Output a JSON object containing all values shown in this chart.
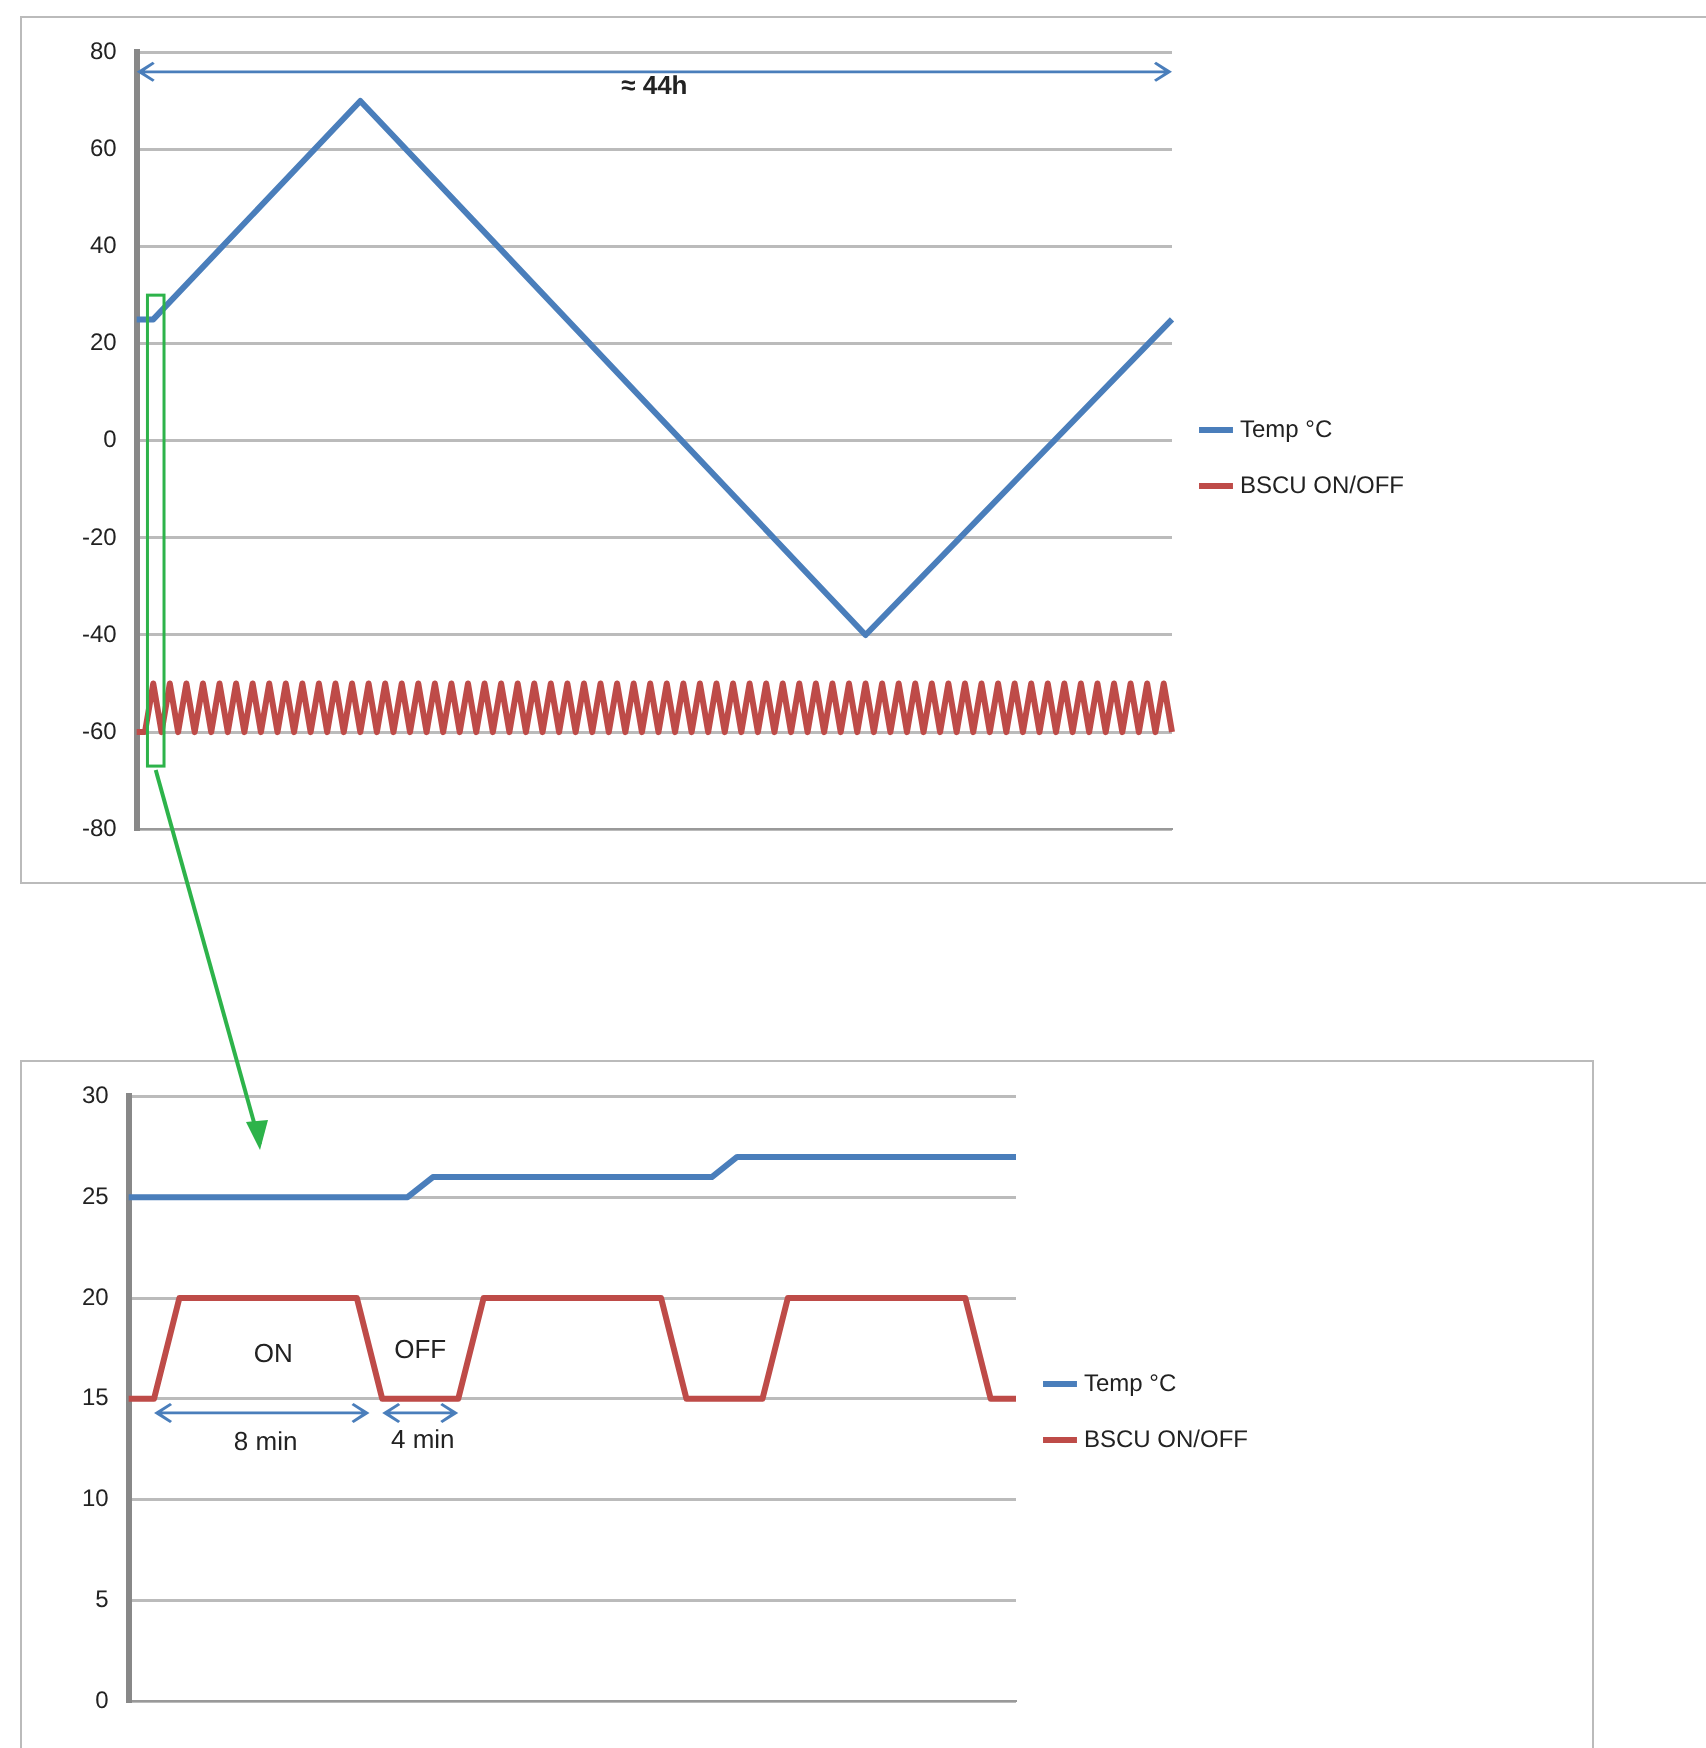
{
  "chart_data": [
    {
      "type": "line",
      "categories": [
        null,
        null,
        null,
        null,
        null,
        null,
        null,
        null,
        null,
        null,
        null,
        null,
        null,
        null,
        null,
        null,
        null,
        null,
        null,
        null,
        null,
        null,
        null,
        null,
        null,
        null,
        null,
        null,
        null,
        null,
        null,
        null,
        null,
        null,
        null,
        null,
        null,
        null,
        null,
        null,
        null,
        null,
        null,
        null,
        null,
        null,
        null,
        null,
        null,
        null,
        null,
        null,
        null,
        null,
        null,
        null,
        null,
        null,
        null,
        null,
        null,
        null,
        null,
        null,
        null,
        null,
        null,
        null,
        null,
        null,
        null,
        null,
        null,
        null,
        null,
        null,
        null,
        null,
        null,
        null,
        null,
        null,
        null,
        null,
        null,
        null,
        null,
        null,
        null,
        null,
        null,
        null,
        null,
        null,
        null,
        null,
        null,
        null,
        null,
        null,
        null,
        null,
        null,
        null,
        null,
        null,
        null,
        null,
        null,
        null,
        null,
        null,
        null,
        null,
        null,
        null,
        null,
        null,
        null,
        null,
        null,
        null,
        null,
        null,
        null,
        null
      ],
      "series": [
        {
          "name": "Temp °C",
          "color": "#4a7ebb",
          "values": [
            25,
            null,
            25,
            null,
            null,
            null,
            null,
            null,
            null,
            null,
            null,
            null,
            null,
            null,
            null,
            null,
            null,
            null,
            null,
            null,
            null,
            null,
            null,
            null,
            null,
            null,
            null,
            70,
            null,
            null,
            null,
            null,
            null,
            null,
            null,
            null,
            null,
            null,
            null,
            null,
            null,
            null,
            null,
            null,
            null,
            null,
            null,
            null,
            null,
            null,
            null,
            null,
            null,
            null,
            null,
            null,
            null,
            null,
            null,
            null,
            null,
            null,
            null,
            null,
            null,
            null,
            null,
            null,
            null,
            null,
            null,
            null,
            null,
            null,
            null,
            null,
            null,
            null,
            null,
            null,
            null,
            null,
            null,
            null,
            null,
            null,
            null,
            null,
            -40,
            null,
            null,
            null,
            null,
            null,
            null,
            null,
            null,
            null,
            null,
            null,
            null,
            null,
            null,
            null,
            null,
            null,
            null,
            null,
            null,
            null,
            null,
            null,
            null,
            null,
            null,
            null,
            null,
            null,
            null,
            null,
            null,
            null,
            null,
            null,
            null,
            25
          ]
        },
        {
          "name": "BSCU ON/OFF",
          "color": "#be4b48",
          "values": [
            -60,
            -60,
            -50,
            -60,
            -50,
            -60,
            -50,
            -60,
            -50,
            -60,
            -50,
            -60,
            -50,
            -60,
            -50,
            -60,
            -50,
            -60,
            -50,
            -60,
            -50,
            -60,
            -50,
            -60,
            -50,
            -60,
            -50,
            -60,
            -50,
            -60,
            -50,
            -60,
            -50,
            -60,
            -50,
            -60,
            -50,
            -60,
            -50,
            -60,
            -50,
            -60,
            -50,
            -60,
            -50,
            -60,
            -50,
            -60,
            -50,
            -60,
            -50,
            -60,
            -50,
            -60,
            -50,
            -60,
            -50,
            -60,
            -50,
            -60,
            -50,
            -60,
            -50,
            -60,
            -50,
            -60,
            -50,
            -60,
            -50,
            -60,
            -50,
            -60,
            -50,
            -60,
            -50,
            -60,
            -50,
            -60,
            -50,
            -60,
            -50,
            -60,
            -50,
            -60,
            -50,
            -60,
            -50,
            -60,
            -50,
            -60,
            -50,
            -60,
            -50,
            -60,
            -50,
            -60,
            -50,
            -60,
            -50,
            -60,
            -50,
            -60,
            -50,
            -60,
            -50,
            -60,
            -50,
            -60,
            -50,
            -60,
            -50,
            -60,
            -50,
            -60,
            -50,
            -60,
            -50,
            -60,
            -50,
            -60,
            -50,
            -60,
            -50,
            -60,
            -50,
            -60
          ]
        }
      ],
      "ylim": [
        -80,
        80
      ],
      "yticks": [
        -80,
        -60,
        -40,
        -20,
        0,
        20,
        40,
        60,
        80
      ],
      "grid": "y",
      "legend": "right",
      "marker": "none",
      "line_style": "solid",
      "annotations": [
        "≈ 44h"
      ]
    },
    {
      "type": "line",
      "categories": [
        null,
        null,
        null,
        null,
        null,
        null,
        null,
        null,
        null,
        null,
        null,
        null,
        null,
        null,
        null,
        null,
        null,
        null,
        null,
        null,
        null,
        null,
        null,
        null,
        null,
        null,
        null,
        null,
        null,
        null,
        null,
        null,
        null,
        null,
        null,
        null
      ],
      "series": [
        {
          "name": "Temp °C",
          "color": "#4a7ebb",
          "values": [
            25,
            25,
            25,
            25,
            25,
            25,
            25,
            25,
            25,
            25,
            25,
            25,
            26,
            26,
            26,
            26,
            26,
            26,
            26,
            26,
            26,
            26,
            26,
            26,
            27,
            27,
            27,
            27,
            27,
            27,
            27,
            27,
            27,
            27,
            27,
            27
          ]
        },
        {
          "name": "BSCU ON/OFF",
          "color": "#be4b48",
          "values": [
            15,
            15,
            20,
            20,
            20,
            20,
            20,
            20,
            20,
            20,
            15,
            15,
            15,
            15,
            20,
            20,
            20,
            20,
            20,
            20,
            20,
            20,
            15,
            15,
            15,
            15,
            20,
            20,
            20,
            20,
            20,
            20,
            20,
            20,
            15,
            15
          ]
        }
      ],
      "ylim": [
        0,
        30
      ],
      "yticks": [
        0,
        5,
        10,
        15,
        20,
        25,
        30
      ],
      "grid": "y",
      "legend": "right",
      "marker": "none",
      "line_style": "solid",
      "annotations": [
        "ON",
        "OFF",
        "8 min",
        "4 min"
      ]
    }
  ]
}
